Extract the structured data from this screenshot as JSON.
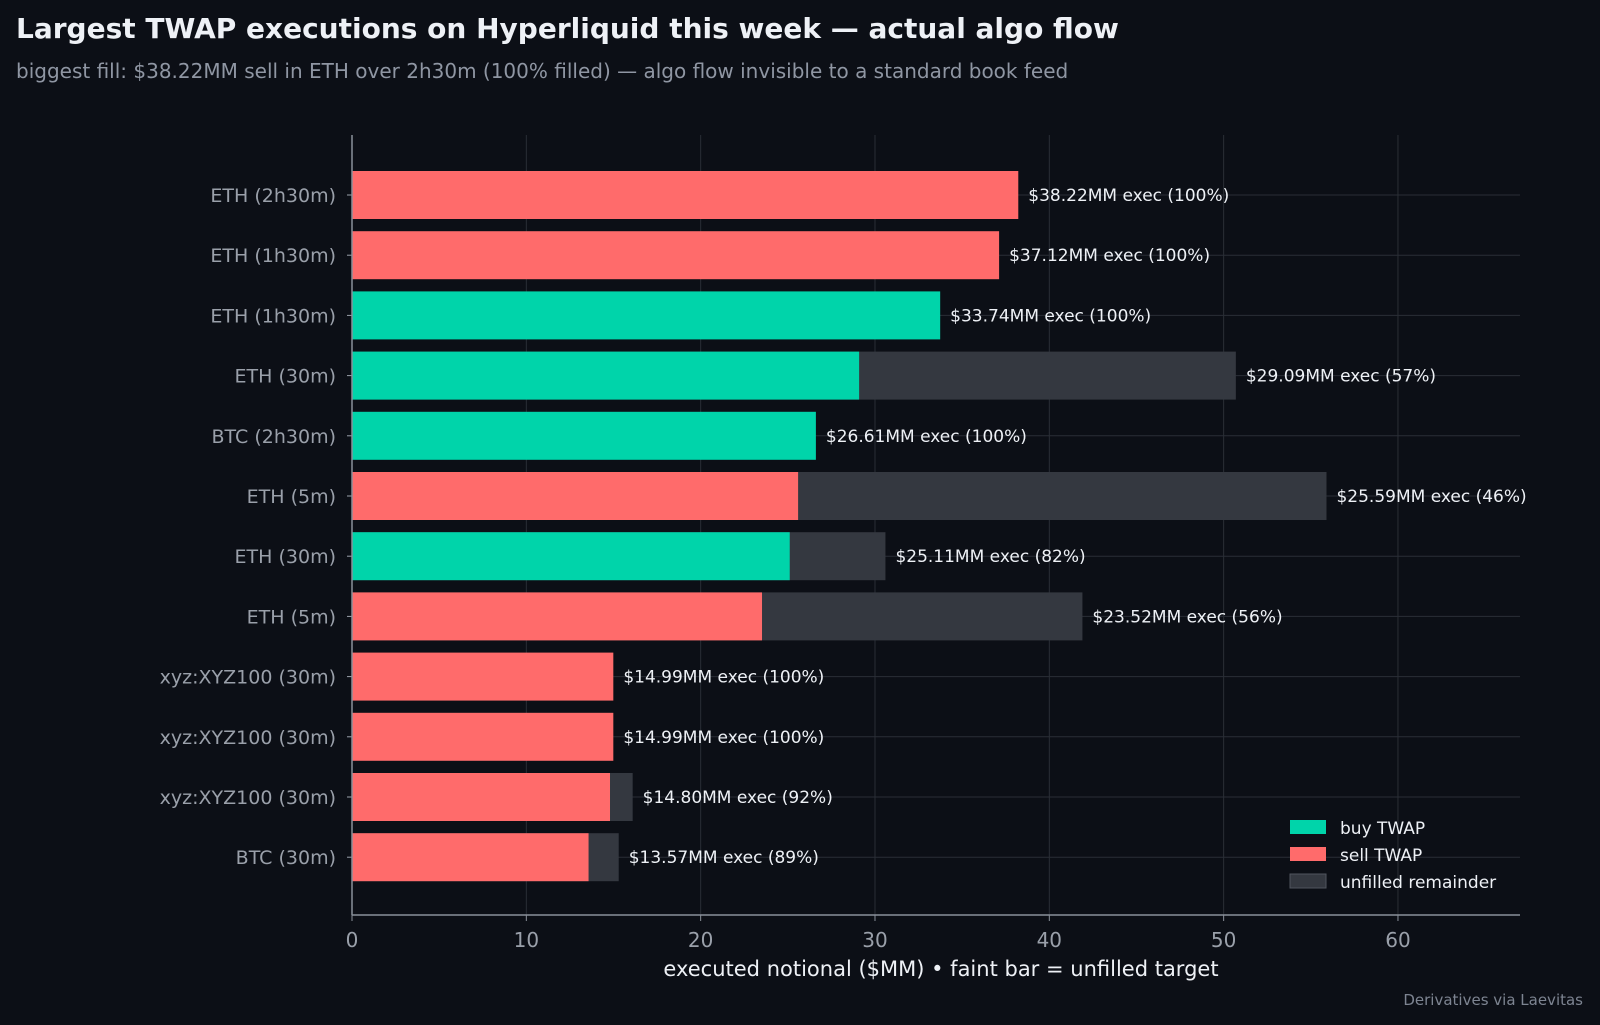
{
  "title": "Largest TWAP executions on Hyperliquid this week — actual algo flow",
  "subtitle": "biggest fill: $38.22MM sell in ETH over 2h30m (100% filled) — algo flow invisible to a standard book feed",
  "footer": "Derivatives via Laevitas",
  "colors": {
    "buy": "#00d4aa",
    "sell": "#ff6b6b",
    "unfilled": "#343840",
    "background": "#0c0f16",
    "grid": "#2a2e36",
    "tick_text": "#9aa0aa",
    "label_text": "#eef1f6"
  },
  "chart_data": {
    "type": "bar",
    "orientation": "horizontal",
    "xlabel": "executed notional ($MM)  •  faint bar = unfilled target",
    "ylabel": "",
    "xlim": [
      0,
      67
    ],
    "xticks": [
      0,
      10,
      20,
      30,
      40,
      50,
      60
    ],
    "grid": true,
    "legend_position": "bottom-right",
    "legend": [
      {
        "key": "buy",
        "label": "buy TWAP"
      },
      {
        "key": "sell",
        "label": "sell TWAP"
      },
      {
        "key": "unfilled",
        "label": "unfilled remainder"
      }
    ],
    "bars": [
      {
        "label": "ETH  (2h30m)",
        "side": "sell",
        "executed": 38.22,
        "target": 38.22,
        "annotation": "$38.22MM exec (100%)"
      },
      {
        "label": "ETH  (1h30m)",
        "side": "sell",
        "executed": 37.12,
        "target": 37.12,
        "annotation": "$37.12MM exec (100%)"
      },
      {
        "label": "ETH  (1h30m)",
        "side": "buy",
        "executed": 33.74,
        "target": 33.74,
        "annotation": "$33.74MM exec (100%)"
      },
      {
        "label": "ETH  (30m)",
        "side": "buy",
        "executed": 29.09,
        "target": 50.7,
        "annotation": "$29.09MM exec (57%)"
      },
      {
        "label": "BTC  (2h30m)",
        "side": "buy",
        "executed": 26.61,
        "target": 26.61,
        "annotation": "$26.61MM exec (100%)"
      },
      {
        "label": "ETH  (5m)",
        "side": "sell",
        "executed": 25.59,
        "target": 55.9,
        "annotation": "$25.59MM exec (46%)"
      },
      {
        "label": "ETH  (30m)",
        "side": "buy",
        "executed": 25.11,
        "target": 30.6,
        "annotation": "$25.11MM exec (82%)"
      },
      {
        "label": "ETH  (5m)",
        "side": "sell",
        "executed": 23.52,
        "target": 41.9,
        "annotation": "$23.52MM exec (56%)"
      },
      {
        "label": "xyz:XYZ100  (30m)",
        "side": "sell",
        "executed": 14.99,
        "target": 14.99,
        "annotation": "$14.99MM exec (100%)"
      },
      {
        "label": "xyz:XYZ100  (30m)",
        "side": "sell",
        "executed": 14.99,
        "target": 14.99,
        "annotation": "$14.99MM exec (100%)"
      },
      {
        "label": "xyz:XYZ100  (30m)",
        "side": "sell",
        "executed": 14.8,
        "target": 16.1,
        "annotation": "$14.80MM exec (92%)"
      },
      {
        "label": "BTC  (30m)",
        "side": "sell",
        "executed": 13.57,
        "target": 15.3,
        "annotation": "$13.57MM exec (89%)"
      }
    ]
  }
}
